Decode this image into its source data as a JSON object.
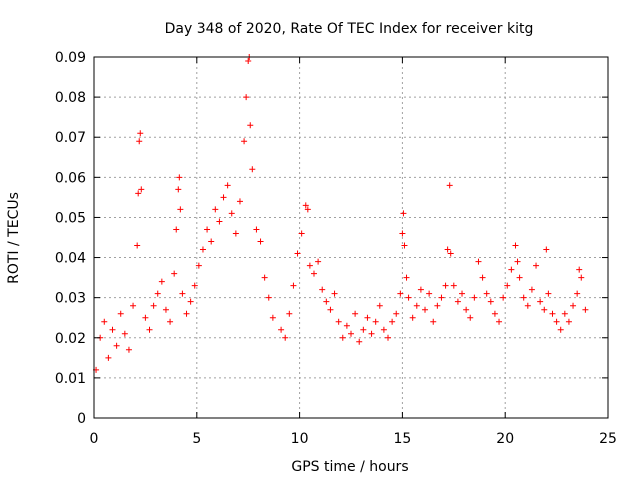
{
  "chart_data": {
    "type": "scatter",
    "title": "Day 348 of 2020, Rate Of TEC Index for receiver kitg",
    "xlabel": "GPS time / hours",
    "ylabel": "ROTI / TECUs",
    "xlim": [
      0,
      25
    ],
    "ylim": [
      0,
      0.09
    ],
    "xticks": [
      0,
      5,
      10,
      15,
      20,
      25
    ],
    "xtick_labels": [
      "0",
      "5",
      "10",
      "15",
      "20",
      "25"
    ],
    "yticks": [
      0,
      0.01,
      0.02,
      0.03,
      0.04,
      0.05,
      0.06,
      0.07,
      0.08,
      0.09
    ],
    "ytick_labels": [
      "0",
      "0.01",
      "0.02",
      "0.03",
      "0.04",
      "0.05",
      "0.06",
      "0.07",
      "0.08",
      "0.09"
    ],
    "grid": true,
    "marker": "plus",
    "color": "#ff0000",
    "series": [
      {
        "name": "ROTI",
        "x": [
          0.1,
          0.3,
          0.5,
          0.7,
          0.9,
          1.1,
          1.3,
          1.5,
          1.7,
          1.9,
          2.1,
          2.15,
          2.2,
          2.25,
          2.3,
          2.5,
          2.7,
          2.9,
          3.1,
          3.3,
          3.5,
          3.7,
          3.9,
          4.0,
          4.1,
          4.15,
          4.2,
          4.3,
          4.5,
          4.7,
          4.9,
          5.1,
          5.3,
          5.5,
          5.7,
          5.9,
          6.1,
          6.3,
          6.5,
          6.7,
          6.9,
          7.1,
          7.3,
          7.4,
          7.5,
          7.55,
          7.6,
          7.7,
          7.9,
          8.1,
          8.3,
          8.5,
          8.7,
          9.1,
          9.3,
          9.5,
          9.7,
          9.9,
          10.1,
          10.3,
          10.4,
          10.5,
          10.7,
          10.9,
          11.1,
          11.3,
          11.5,
          11.7,
          11.9,
          12.1,
          12.3,
          12.5,
          12.7,
          12.9,
          13.1,
          13.3,
          13.5,
          13.7,
          13.9,
          14.1,
          14.3,
          14.5,
          14.7,
          14.9,
          15.0,
          15.05,
          15.1,
          15.2,
          15.3,
          15.5,
          15.7,
          15.9,
          16.1,
          16.3,
          16.5,
          16.7,
          16.9,
          17.1,
          17.2,
          17.3,
          17.35,
          17.5,
          17.7,
          17.9,
          18.1,
          18.3,
          18.5,
          18.7,
          18.9,
          19.1,
          19.3,
          19.5,
          19.7,
          19.9,
          20.1,
          20.3,
          20.5,
          20.6,
          20.7,
          20.9,
          21.1,
          21.3,
          21.5,
          21.7,
          21.9,
          22.0,
          22.1,
          22.3,
          22.5,
          22.7,
          22.9,
          23.1,
          23.3,
          23.5,
          23.6,
          23.7,
          23.9
        ],
        "y": [
          0.012,
          0.02,
          0.024,
          0.015,
          0.022,
          0.018,
          0.026,
          0.021,
          0.017,
          0.028,
          0.043,
          0.056,
          0.069,
          0.071,
          0.057,
          0.025,
          0.022,
          0.028,
          0.031,
          0.034,
          0.027,
          0.024,
          0.036,
          0.047,
          0.057,
          0.06,
          0.052,
          0.031,
          0.026,
          0.029,
          0.033,
          0.038,
          0.042,
          0.047,
          0.044,
          0.052,
          0.049,
          0.055,
          0.058,
          0.051,
          0.046,
          0.054,
          0.069,
          0.08,
          0.089,
          0.09,
          0.073,
          0.062,
          0.047,
          0.044,
          0.035,
          0.03,
          0.025,
          0.022,
          0.02,
          0.026,
          0.033,
          0.041,
          0.046,
          0.053,
          0.052,
          0.038,
          0.036,
          0.039,
          0.032,
          0.029,
          0.027,
          0.031,
          0.024,
          0.02,
          0.023,
          0.021,
          0.026,
          0.019,
          0.022,
          0.025,
          0.021,
          0.024,
          0.028,
          0.022,
          0.02,
          0.024,
          0.026,
          0.031,
          0.046,
          0.051,
          0.043,
          0.035,
          0.03,
          0.025,
          0.028,
          0.032,
          0.027,
          0.031,
          0.024,
          0.028,
          0.03,
          0.033,
          0.042,
          0.058,
          0.041,
          0.033,
          0.029,
          0.031,
          0.027,
          0.025,
          0.03,
          0.039,
          0.035,
          0.031,
          0.029,
          0.026,
          0.024,
          0.03,
          0.033,
          0.037,
          0.043,
          0.039,
          0.035,
          0.03,
          0.028,
          0.032,
          0.038,
          0.029,
          0.027,
          0.042,
          0.031,
          0.026,
          0.024,
          0.022,
          0.026,
          0.024,
          0.028,
          0.031,
          0.037,
          0.035,
          0.027
        ]
      }
    ]
  }
}
